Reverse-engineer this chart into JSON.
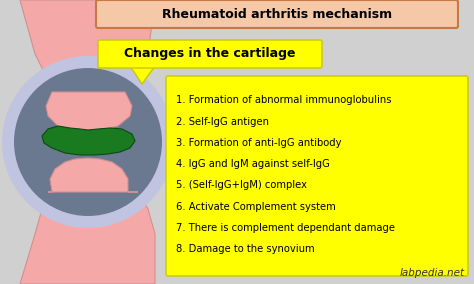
{
  "title": "Rheumatoid arthritis mechanism",
  "subtitle": "Changes in the cartilage",
  "bg_color": "#d0d0d0",
  "title_box_color": "#f5c8a8",
  "subtitle_box_color": "#ffff00",
  "list_box_color": "#ffff00",
  "list_items": [
    "1. Formation of abnormal immunoglobulins",
    "2. Self-IgG antigen",
    "3. Formation of anti-IgG antibody",
    "4. IgG and IgM against self-IgG",
    "5. (Self-IgG+IgM) complex",
    "6. Activate Complement system",
    "7. There is complement dependant damage",
    "8. Damage to the synovium"
  ],
  "watermark": "labpedia.net",
  "knee_pink": "#f5a8a8",
  "knee_ring_outer": "#c0c4e0",
  "knee_ring_inner": "#9098c0",
  "knee_joint_dark": "#6a7890",
  "knee_green": "#1a7a20",
  "knee_green_edge": "#0a4a10",
  "title_edge": "#c87840",
  "list_edge": "#c8c800",
  "sub_edge": "#c8c800"
}
